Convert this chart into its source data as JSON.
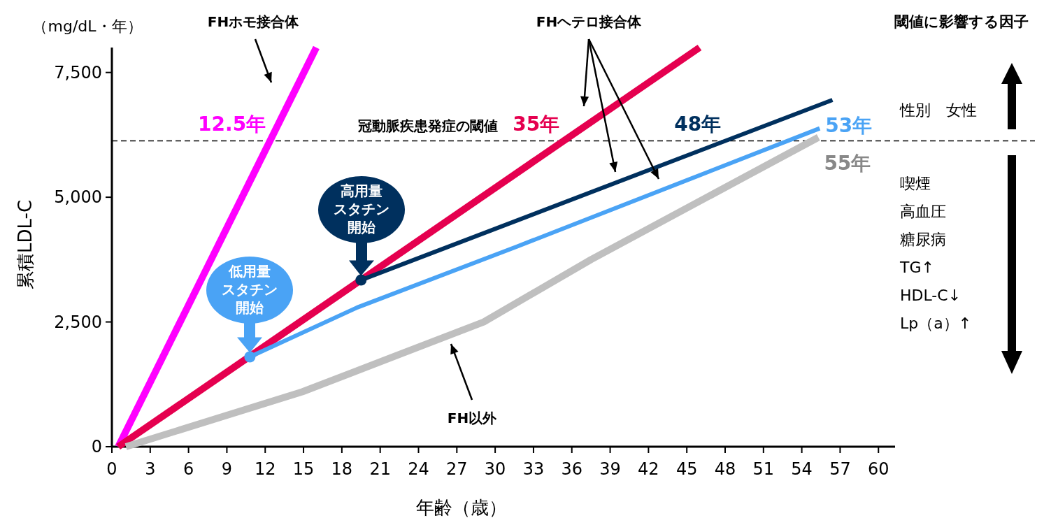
{
  "chart_data": {
    "type": "line",
    "xlabel": "年齢（歳）",
    "ylabel": "累積LDL-C",
    "xlim": [
      0,
      61.3
    ],
    "ylim": [
      0,
      8000
    ],
    "xticks": [
      0,
      3,
      6,
      9,
      12,
      15,
      18,
      21,
      24,
      27,
      30,
      33,
      36,
      39,
      42,
      45,
      48,
      51,
      54,
      57,
      60
    ],
    "yticks": [
      0,
      {
        "value": 2500,
        "label": "2,500"
      },
      {
        "value": 5000,
        "label": "5,000"
      },
      {
        "value": 7500,
        "label": "7,500"
      }
    ],
    "series": [
      {
        "name": "12.5年",
        "color": "#ff00ff",
        "x": [
          0.5,
          16
        ],
        "values": [
          0,
          8000
        ]
      },
      {
        "name": "35年",
        "color": "#e5004f",
        "x": [
          0.5,
          46
        ],
        "values": [
          0,
          8000
        ]
      },
      {
        "name": "48年",
        "color": "#00305e",
        "x": [
          19.5,
          56.4
        ],
        "values": [
          3340,
          6950
        ]
      },
      {
        "name": "53年",
        "color": "#4aa3f5",
        "x": [
          10.8,
          19.2,
          31.7,
          55.4
        ],
        "values": [
          1800,
          2790,
          4010,
          6380
        ]
      },
      {
        "name": "55年",
        "color": "#bfbfbf",
        "x": [
          1.1,
          14.9,
          29.1,
          37.5,
          55.3
        ],
        "values": [
          0,
          1100,
          2500,
          3750,
          6200
        ]
      }
    ],
    "ref_lines": [
      {
        "axis": "y",
        "value": 6130,
        "label": "冠動脈疾患発症の閾値",
        "line_style": "dashed",
        "color": "#000000"
      }
    ],
    "annotations": [
      "（mg/dL・年）",
      "FHホモ接合体",
      "FHヘテロ接合体",
      "FH以外",
      "高用量スタチン開始",
      "低用量スタチン開始",
      "閾値に影響する因子",
      "性別　女性",
      "喫煙",
      "高血圧",
      "糖尿病",
      "TG↑",
      "HDL-C↓",
      "Lp（a）↑"
    ]
  }
}
